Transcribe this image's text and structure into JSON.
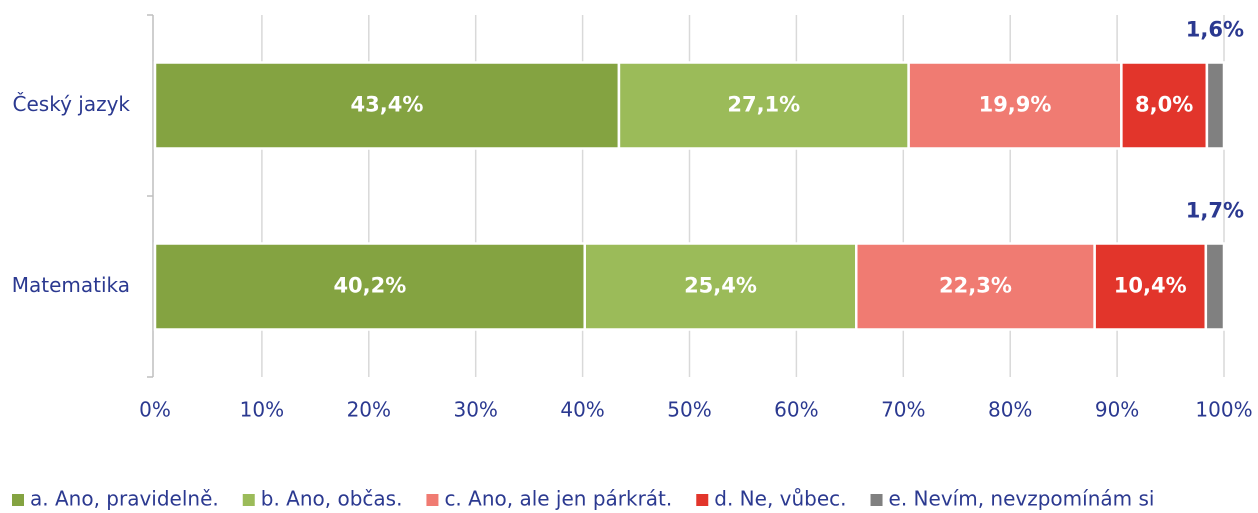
{
  "chart_data": {
    "type": "stacked_bar_horizontal",
    "categories": [
      "Český jazyk",
      "Matematika"
    ],
    "series": [
      {
        "name": "a. Ano, pravidelně.",
        "color": "#84a341",
        "values": [
          43.4,
          40.2
        ],
        "value_labels": [
          "43,4%",
          "40,2%"
        ]
      },
      {
        "name": "b. Ano, občas.",
        "color": "#9bbb59",
        "values": [
          27.1,
          25.4
        ],
        "value_labels": [
          "27,1%",
          "25,4%"
        ]
      },
      {
        "name": "c. Ano, ale jen párkrát.",
        "color": "#f07b72",
        "values": [
          19.9,
          22.3
        ],
        "value_labels": [
          "19,9%",
          "22,3%"
        ]
      },
      {
        "name": "d. Ne, vůbec.",
        "color": "#e2352b",
        "values": [
          8.0,
          10.4
        ],
        "value_labels": [
          "8,0%",
          "10,4%"
        ]
      },
      {
        "name": "e. Nevím, nevzpomínám si",
        "color": "#808080",
        "values": [
          1.6,
          1.7
        ],
        "value_labels": [
          "1,6%",
          "1,7%"
        ]
      }
    ],
    "xlim": [
      0,
      100
    ],
    "xticks": [
      {
        "value": 0,
        "label": "0%"
      },
      {
        "value": 10,
        "label": "10%"
      },
      {
        "value": 20,
        "label": "20%"
      },
      {
        "value": 30,
        "label": "30%"
      },
      {
        "value": 40,
        "label": "40%"
      },
      {
        "value": 50,
        "label": "50%"
      },
      {
        "value": 60,
        "label": "60%"
      },
      {
        "value": 70,
        "label": "70%"
      },
      {
        "value": 80,
        "label": "80%"
      },
      {
        "value": 90,
        "label": "90%"
      },
      {
        "value": 100,
        "label": "100%"
      }
    ],
    "grid": true,
    "legend": "bottom"
  }
}
